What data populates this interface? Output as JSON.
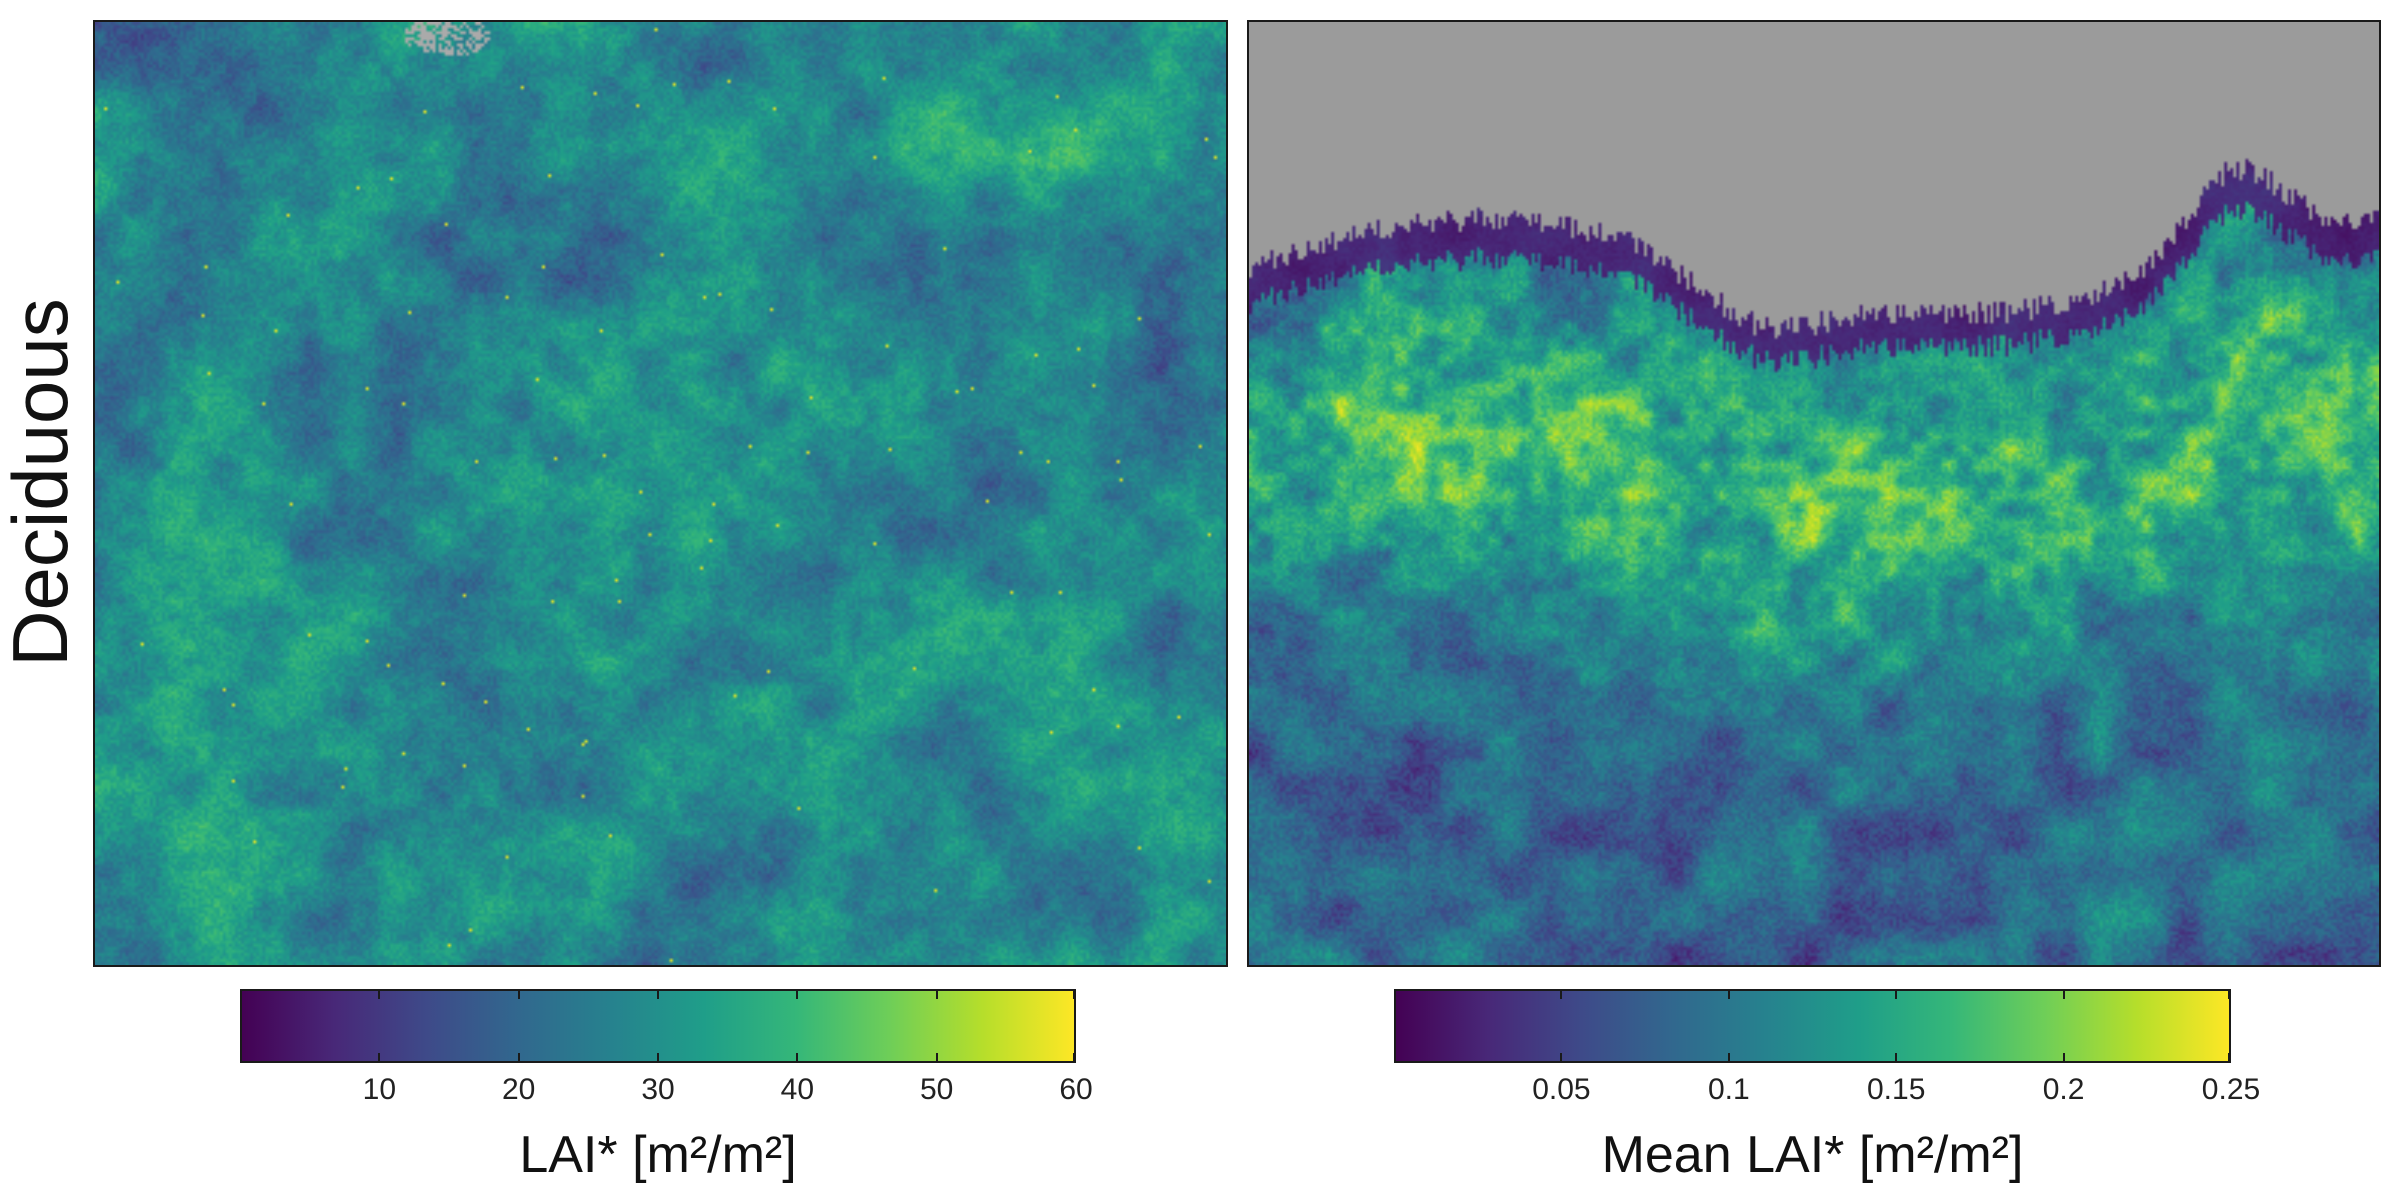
{
  "row_label": "Deciduous",
  "chart_data": [
    {
      "type": "heatmap",
      "panel": "left",
      "description_scale": "viridis",
      "colorbar": {
        "label": "LAI* [m²/m²]",
        "ticks": [
          10,
          20,
          30,
          40,
          50,
          60
        ],
        "range": [
          0,
          60
        ]
      },
      "values_summary": {
        "typical_range": [
          5,
          30
        ],
        "max": 60,
        "missing_region": "top-center small patch (gray, no data)"
      }
    },
    {
      "type": "heatmap",
      "panel": "right",
      "description_scale": "viridis",
      "colorbar": {
        "label": "Mean LAI* [m²/m²]",
        "ticks": [
          "0.05",
          "0.1",
          "0.15",
          "0.2",
          "0.25"
        ],
        "range": [
          0,
          0.25
        ]
      },
      "values_summary": {
        "typical_range": [
          0.05,
          0.2
        ],
        "max": 0.25,
        "missing_region": "upper area above canopy (gray, no data)"
      }
    }
  ],
  "colors": {
    "missing": "#9b9b9b",
    "frame": "#1a1a1a"
  }
}
